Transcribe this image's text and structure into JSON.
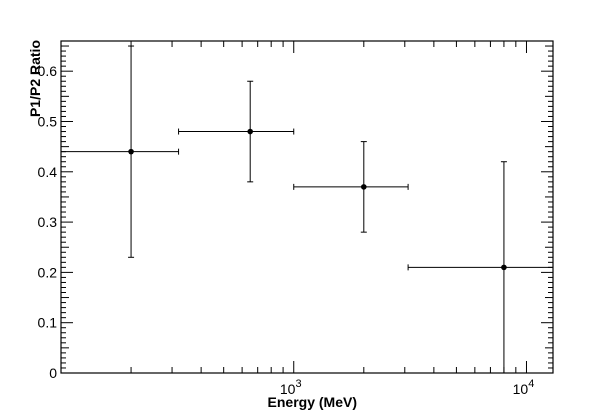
{
  "chart_data": {
    "type": "scatter",
    "title": "",
    "xlabel": "Energy (MeV)",
    "ylabel": "P1/P2 Ratio",
    "xscale": "log",
    "xlim": [
      100,
      13000
    ],
    "ylim": [
      0,
      0.66
    ],
    "yticks": [
      "0",
      "0.1",
      "0.2",
      "0.3",
      "0.4",
      "0.5",
      "0.6"
    ],
    "xticks": [
      {
        "value": 1000,
        "base": "10",
        "exp": "3"
      },
      {
        "value": 10000,
        "base": "10",
        "exp": "4"
      }
    ],
    "grid": false,
    "legend": "none",
    "points": [
      {
        "x": 200,
        "y": 0.44,
        "xlo": 100,
        "xhi": 320,
        "ylo": 0.23,
        "yhi": 0.65
      },
      {
        "x": 650,
        "y": 0.48,
        "xlo": 320,
        "xhi": 1000,
        "ylo": 0.38,
        "yhi": 0.58
      },
      {
        "x": 2000,
        "y": 0.37,
        "xlo": 1000,
        "xhi": 3100,
        "ylo": 0.28,
        "yhi": 0.46
      },
      {
        "x": 8000,
        "y": 0.21,
        "xlo": 3100,
        "xhi": 13000,
        "ylo": 0.0,
        "yhi": 0.42
      }
    ],
    "colors": {
      "marker": "#000000",
      "axis": "#000000"
    }
  }
}
